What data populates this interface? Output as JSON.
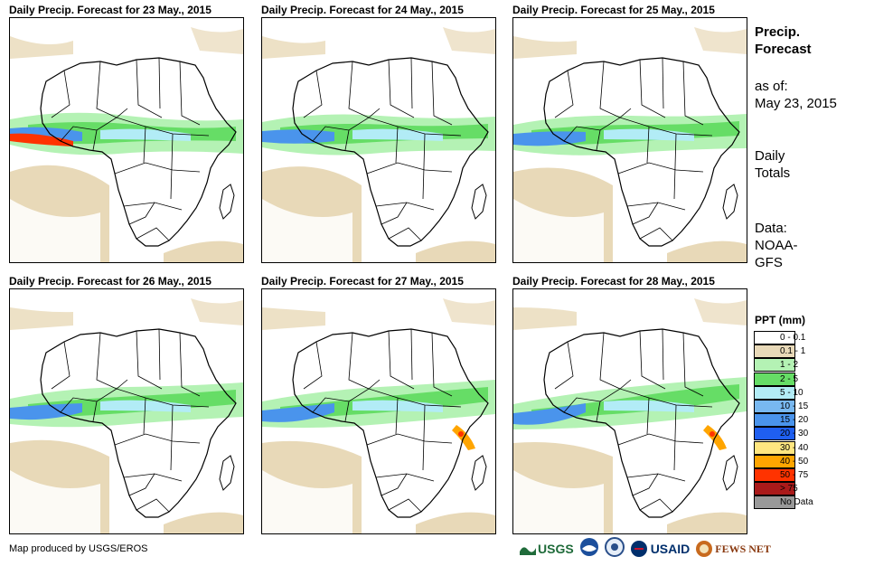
{
  "panels": [
    {
      "title": "Daily Precip. Forecast for 23 May., 2015"
    },
    {
      "title": "Daily Precip. Forecast for 24 May., 2015"
    },
    {
      "title": "Daily Precip. Forecast for 25 May., 2015"
    },
    {
      "title": "Daily Precip. Forecast for 26 May., 2015"
    },
    {
      "title": "Daily Precip. Forecast for 27 May., 2015"
    },
    {
      "title": "Daily Precip. Forecast for 28 May., 2015"
    }
  ],
  "side": {
    "title_line1": "Precip.",
    "title_line2": "Forecast",
    "asof_label": "as of:",
    "asof_date": "May 23, 2015",
    "totals_line1": "Daily",
    "totals_line2": "Totals",
    "data_line1": "Data:",
    "data_line2": "NOAA-",
    "data_line3": "GFS"
  },
  "legend": {
    "title": "PPT (mm)",
    "items": [
      {
        "label": "0 - 0.1",
        "color": "#ffffff"
      },
      {
        "label": "0.1 - 1",
        "color": "#e8d9b8"
      },
      {
        "label": "1 - 2",
        "color": "#b4f2b4"
      },
      {
        "label": "2 - 5",
        "color": "#66dd66"
      },
      {
        "label": "5 - 10",
        "color": "#b2ecf6"
      },
      {
        "label": "10 - 15",
        "color": "#78b8f0"
      },
      {
        "label": "15 - 20",
        "color": "#4a94ec"
      },
      {
        "label": "20 - 30",
        "color": "#1f5ff0"
      },
      {
        "label": "30 - 40",
        "color": "#ffe680"
      },
      {
        "label": "40 - 50",
        "color": "#ffa500"
      },
      {
        "label": "50 - 75",
        "color": "#ff3300"
      },
      {
        "label": "> 75",
        "color": "#aa1a1a"
      },
      {
        "label": "No Data",
        "color": "#999999"
      }
    ]
  },
  "credit": "Map produced by USGS/EROS",
  "logos": {
    "usgs": "USGS",
    "usaid": "USAID",
    "fewsnet": "FEWS NET"
  }
}
